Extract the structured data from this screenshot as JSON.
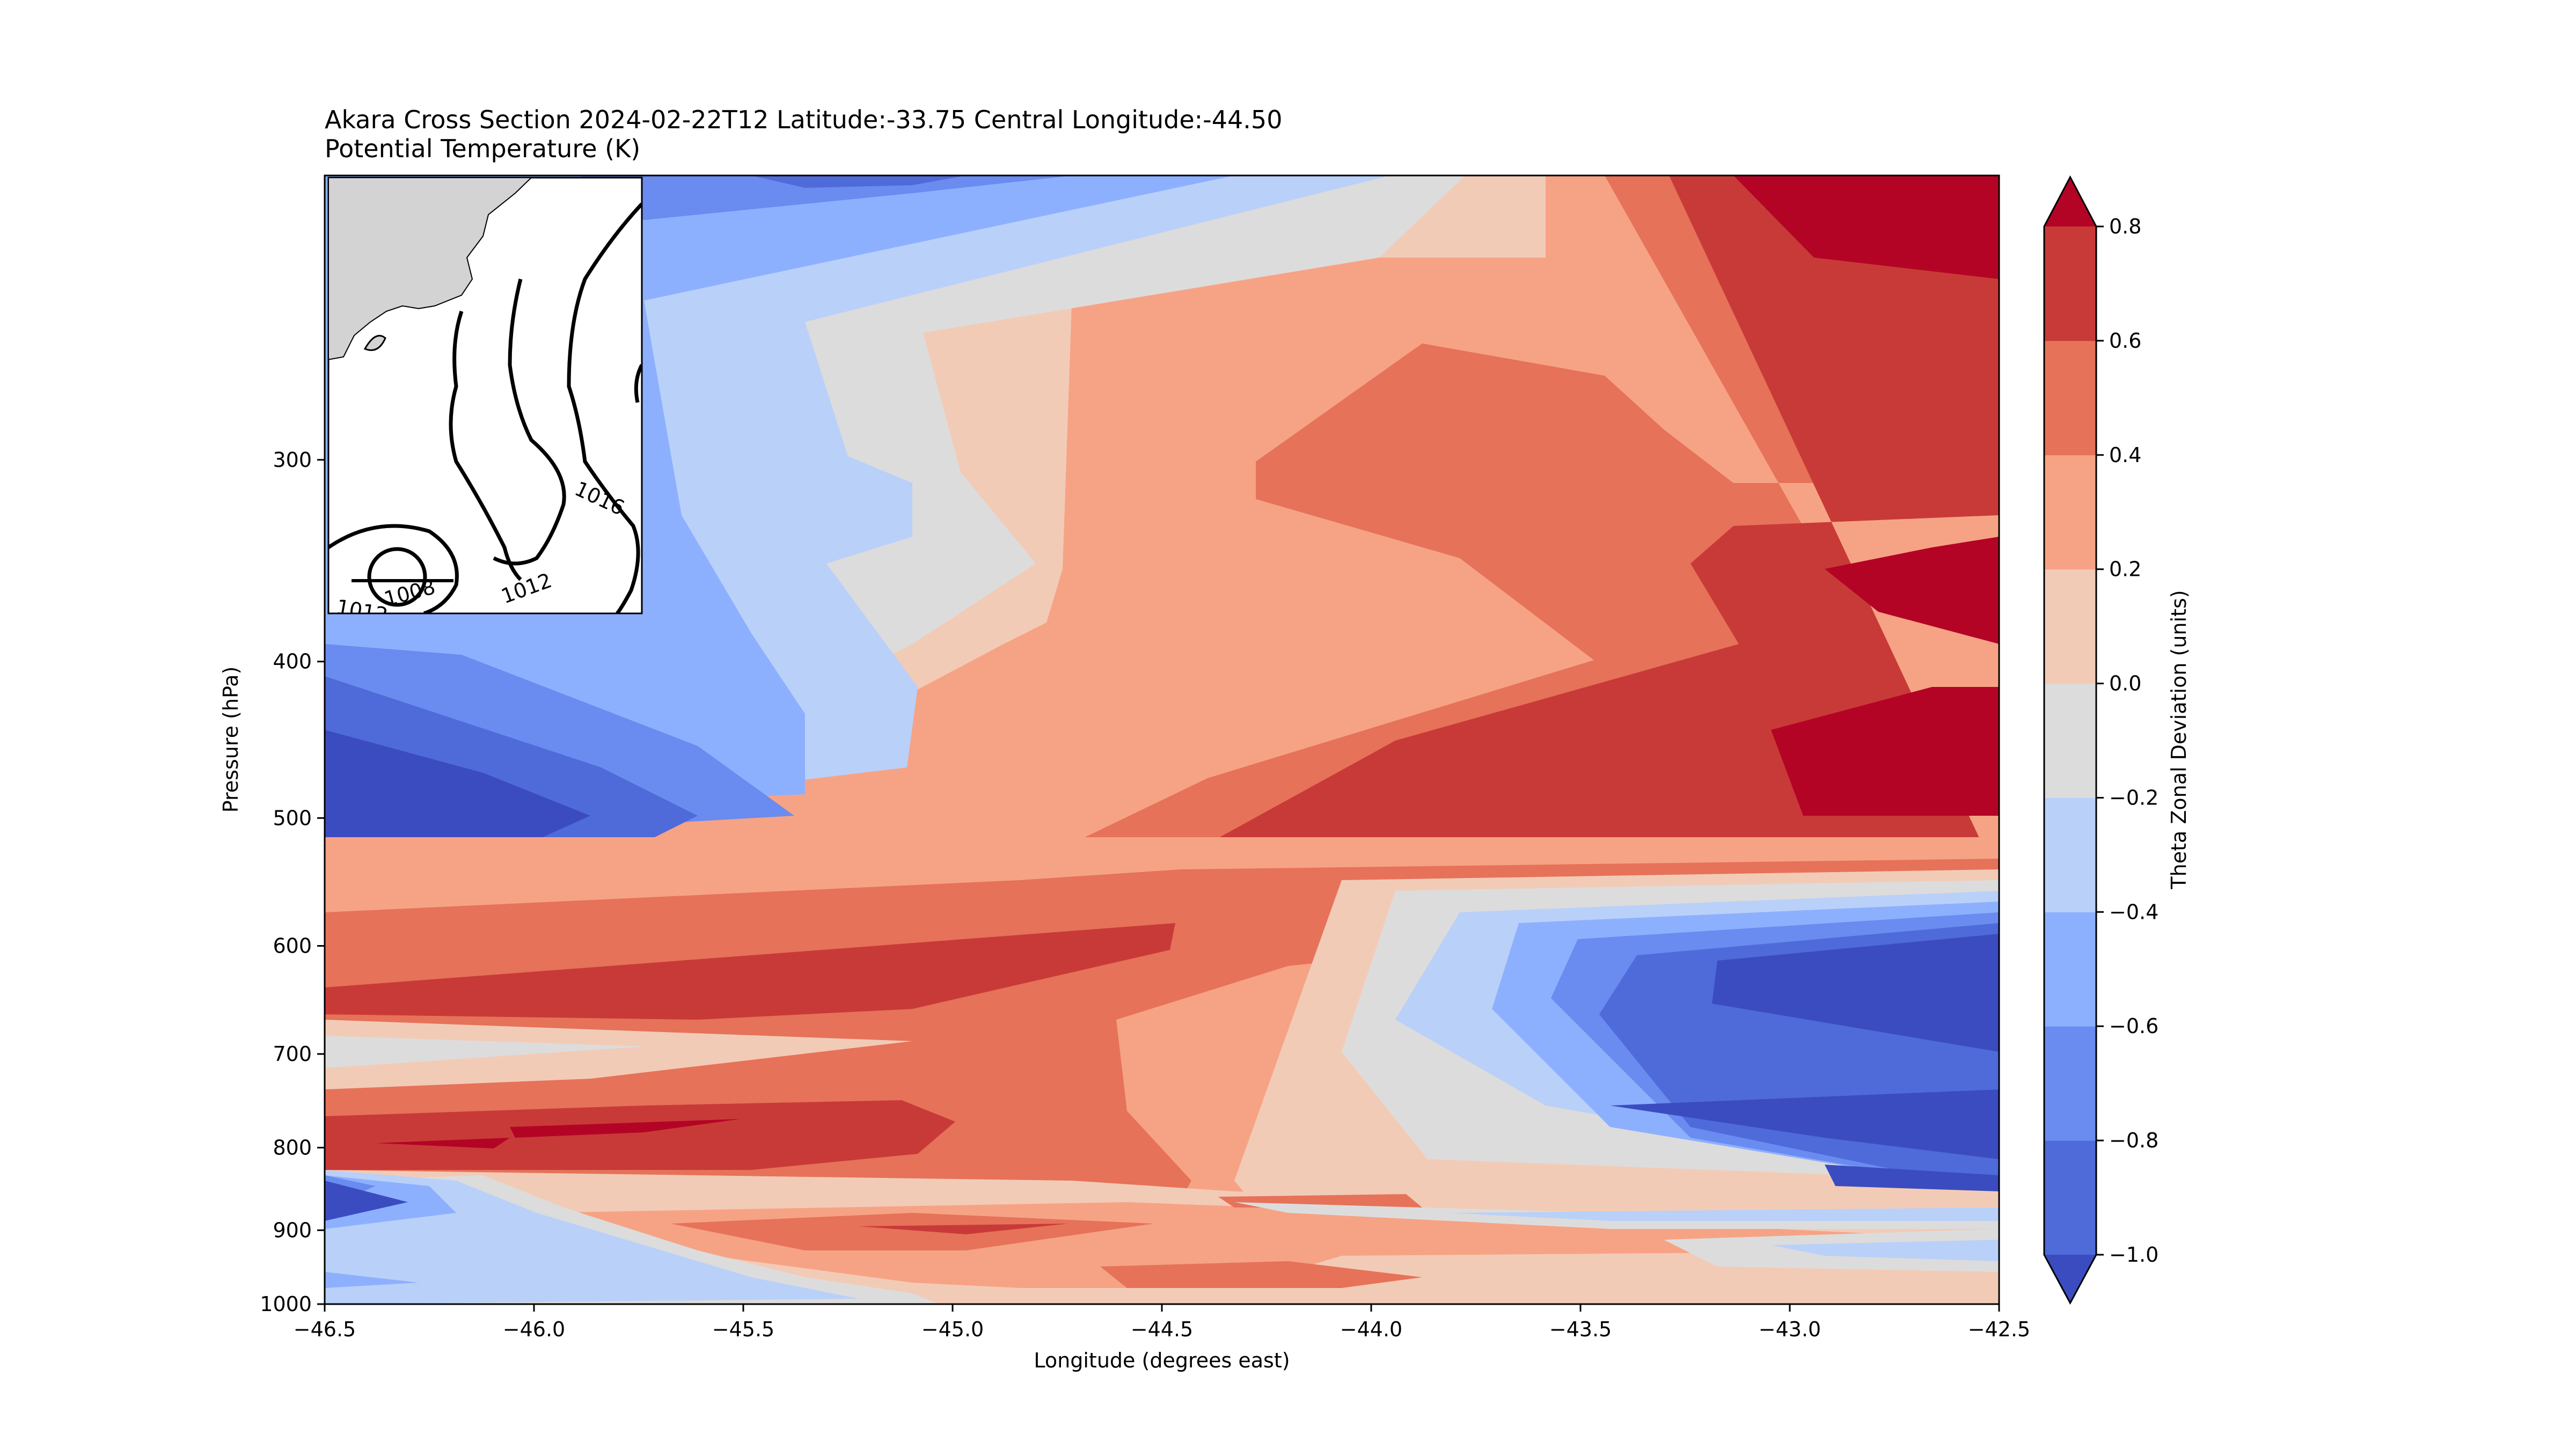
{
  "chart_data": {
    "type": "contourf",
    "title": "Akara Cross Section 2024-02-22T12 Latitude:-33.75 Central Longitude:-44.50",
    "subtitle": "Potential Temperature (K)",
    "xlabel": "Longitude (degrees east)",
    "ylabel": "Pressure (hPa)",
    "xlim": [
      -46.5,
      -42.5
    ],
    "ylim": [
      1000,
      200
    ],
    "y_scale": "log",
    "x_ticks": [
      -46.5,
      -46.0,
      -45.5,
      -45.0,
      -44.5,
      -44.0,
      -43.5,
      -43.0,
      -42.5
    ],
    "x_tick_labels": [
      "−46.5",
      "−46.0",
      "−45.5",
      "−45.0",
      "−44.5",
      "−44.0",
      "−43.5",
      "−43.0",
      "−42.5"
    ],
    "y_ticks": [
      300,
      400,
      500,
      600,
      700,
      800,
      900,
      1000
    ],
    "y_tick_labels": [
      "300",
      "400",
      "500",
      "600",
      "700",
      "800",
      "900",
      "1000"
    ],
    "colorbar": {
      "label": "Theta Zonal Deviation (units)",
      "levels": [
        -1.0,
        -0.8,
        -0.6,
        -0.4,
        -0.2,
        0.0,
        0.2,
        0.4,
        0.6,
        0.8
      ],
      "tick_labels": [
        "−1.0",
        "−0.8",
        "−0.6",
        "−0.4",
        "−0.2",
        "0.0",
        "0.2",
        "0.4",
        "0.6",
        "0.8"
      ],
      "colors": [
        "#3b4cc0",
        "#4f6ad9",
        "#6a8bef",
        "#8db0fe",
        "#b9d0f9",
        "#dddcdc",
        "#f2cbb7",
        "#f6a385",
        "#e67259",
        "#c83a37",
        "#b40426"
      ],
      "extend": "both"
    },
    "inset_map": {
      "contour_labels": [
        "1016",
        "1012",
        "1008",
        "1012"
      ]
    }
  }
}
